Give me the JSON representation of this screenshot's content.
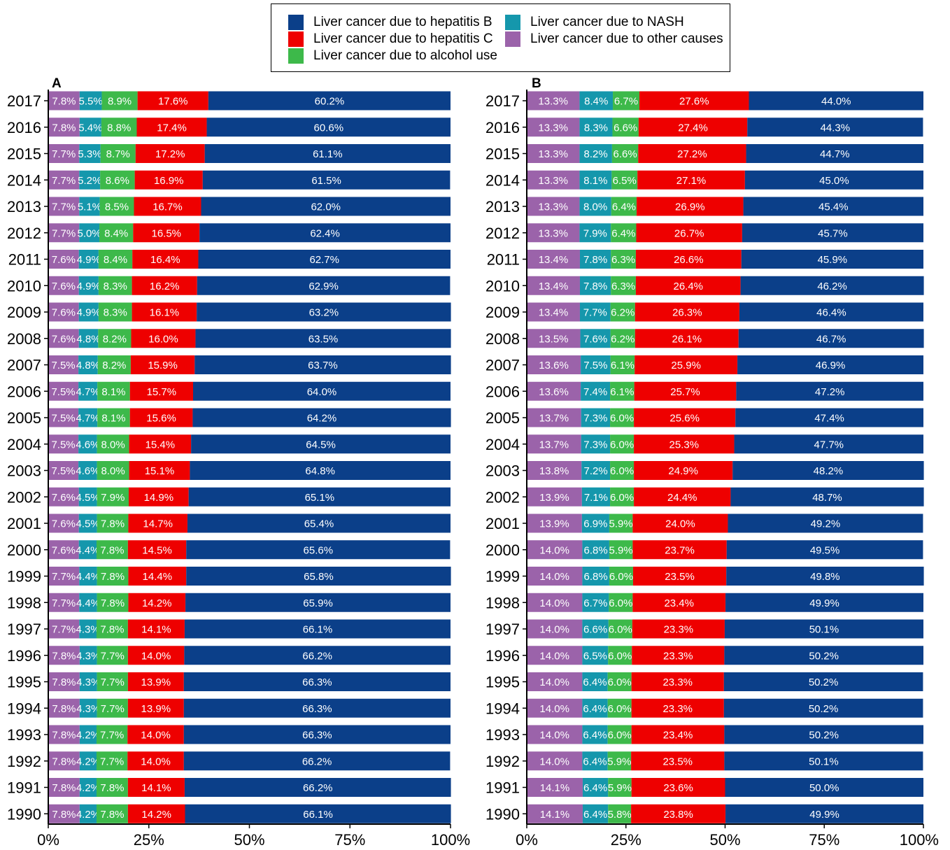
{
  "legend": {
    "items": [
      {
        "label": "Liver cancer due to hepatitis B",
        "color": "#0b3f89"
      },
      {
        "label": "Liver cancer due to NASH",
        "color": "#1597ac"
      },
      {
        "label": "Liver cancer due to hepatitis C",
        "color": "#ee0000"
      },
      {
        "label": "Liver cancer due to other causes",
        "color": "#9b63aa"
      },
      {
        "label": "Liver cancer due to alcohol use",
        "color": "#3db94a"
      }
    ]
  },
  "chart_data": [
    {
      "type": "bar",
      "orientation": "horizontal",
      "stacked": true,
      "panel": "A",
      "xlim": [
        0,
        100
      ],
      "xticks": [
        "0%",
        "25%",
        "50%",
        "75%",
        "100%"
      ],
      "categories": [
        "2017",
        "2016",
        "2015",
        "2014",
        "2013",
        "2012",
        "2011",
        "2010",
        "2009",
        "2008",
        "2007",
        "2006",
        "2005",
        "2004",
        "2003",
        "2002",
        "2001",
        "2000",
        "1999",
        "1998",
        "1997",
        "1996",
        "1995",
        "1994",
        "1993",
        "1992",
        "1991",
        "1990"
      ],
      "series": [
        {
          "name": "Liver cancer due to other causes",
          "color": "#9b63aa",
          "values": [
            7.8,
            7.8,
            7.7,
            7.7,
            7.7,
            7.7,
            7.6,
            7.6,
            7.6,
            7.6,
            7.5,
            7.5,
            7.5,
            7.5,
            7.5,
            7.6,
            7.6,
            7.6,
            7.7,
            7.7,
            7.7,
            7.8,
            7.8,
            7.8,
            7.8,
            7.8,
            7.8,
            7.8
          ]
        },
        {
          "name": "Liver cancer due to NASH",
          "color": "#1597ac",
          "values": [
            5.5,
            5.4,
            5.3,
            5.2,
            5.1,
            5.0,
            4.9,
            4.9,
            4.9,
            4.8,
            4.8,
            4.7,
            4.7,
            4.6,
            4.6,
            4.5,
            4.5,
            4.4,
            4.4,
            4.4,
            4.3,
            4.3,
            4.3,
            4.3,
            4.2,
            4.2,
            4.2,
            4.2
          ]
        },
        {
          "name": "Liver cancer due to alcohol use",
          "color": "#3db94a",
          "values": [
            8.9,
            8.8,
            8.7,
            8.6,
            8.5,
            8.4,
            8.4,
            8.3,
            8.3,
            8.2,
            8.2,
            8.1,
            8.1,
            8.0,
            8.0,
            7.9,
            7.8,
            7.8,
            7.8,
            7.8,
            7.8,
            7.7,
            7.7,
            7.7,
            7.7,
            7.7,
            7.8,
            7.8
          ]
        },
        {
          "name": "Liver cancer due to hepatitis C",
          "color": "#ee0000",
          "values": [
            17.6,
            17.4,
            17.2,
            16.9,
            16.7,
            16.5,
            16.4,
            16.2,
            16.1,
            16.0,
            15.9,
            15.7,
            15.6,
            15.4,
            15.1,
            14.9,
            14.7,
            14.5,
            14.4,
            14.2,
            14.1,
            14.0,
            13.9,
            13.9,
            14.0,
            14.0,
            14.1,
            14.2
          ]
        },
        {
          "name": "Liver cancer due to hepatitis B",
          "color": "#0b3f89",
          "values": [
            60.2,
            60.6,
            61.1,
            61.5,
            62.0,
            62.4,
            62.7,
            62.9,
            63.2,
            63.5,
            63.7,
            64.0,
            64.2,
            64.5,
            64.8,
            65.1,
            65.4,
            65.6,
            65.8,
            65.9,
            66.1,
            66.2,
            66.3,
            66.3,
            66.3,
            66.2,
            66.2,
            66.1
          ]
        }
      ]
    },
    {
      "type": "bar",
      "orientation": "horizontal",
      "stacked": true,
      "panel": "B",
      "xlim": [
        0,
        100
      ],
      "xticks": [
        "0%",
        "25%",
        "50%",
        "75%",
        "100%"
      ],
      "categories": [
        "2017",
        "2016",
        "2015",
        "2014",
        "2013",
        "2012",
        "2011",
        "2010",
        "2009",
        "2008",
        "2007",
        "2006",
        "2005",
        "2004",
        "2003",
        "2002",
        "2001",
        "2000",
        "1999",
        "1998",
        "1997",
        "1996",
        "1995",
        "1994",
        "1993",
        "1992",
        "1991",
        "1990"
      ],
      "series": [
        {
          "name": "Liver cancer due to other causes",
          "color": "#9b63aa",
          "values": [
            13.3,
            13.3,
            13.3,
            13.3,
            13.3,
            13.3,
            13.4,
            13.4,
            13.4,
            13.5,
            13.6,
            13.6,
            13.7,
            13.7,
            13.8,
            13.9,
            13.9,
            14.0,
            14.0,
            14.0,
            14.0,
            14.0,
            14.0,
            14.0,
            14.0,
            14.0,
            14.1,
            14.1
          ]
        },
        {
          "name": "Liver cancer due to NASH",
          "color": "#1597ac",
          "values": [
            8.4,
            8.3,
            8.2,
            8.1,
            8.0,
            7.9,
            7.8,
            7.8,
            7.7,
            7.6,
            7.5,
            7.4,
            7.3,
            7.3,
            7.2,
            7.1,
            6.9,
            6.8,
            6.8,
            6.7,
            6.6,
            6.5,
            6.4,
            6.4,
            6.4,
            6.4,
            6.4,
            6.4
          ]
        },
        {
          "name": "Liver cancer due to alcohol use",
          "color": "#3db94a",
          "values": [
            6.7,
            6.6,
            6.6,
            6.5,
            6.4,
            6.4,
            6.3,
            6.3,
            6.2,
            6.2,
            6.1,
            6.1,
            6.0,
            6.0,
            6.0,
            6.0,
            5.9,
            5.9,
            6.0,
            6.0,
            6.0,
            6.0,
            6.0,
            6.0,
            6.0,
            5.9,
            5.9,
            5.8
          ]
        },
        {
          "name": "Liver cancer due to hepatitis C",
          "color": "#ee0000",
          "values": [
            27.6,
            27.4,
            27.2,
            27.1,
            26.9,
            26.7,
            26.6,
            26.4,
            26.3,
            26.1,
            25.9,
            25.7,
            25.6,
            25.3,
            24.9,
            24.4,
            24.0,
            23.7,
            23.5,
            23.4,
            23.3,
            23.3,
            23.3,
            23.3,
            23.4,
            23.5,
            23.6,
            23.8
          ]
        },
        {
          "name": "Liver cancer due to hepatitis B",
          "color": "#0b3f89",
          "values": [
            44.0,
            44.3,
            44.7,
            45.0,
            45.4,
            45.7,
            45.9,
            46.2,
            46.4,
            46.7,
            46.9,
            47.2,
            47.4,
            47.7,
            48.2,
            48.7,
            49.2,
            49.5,
            49.8,
            49.9,
            50.1,
            50.2,
            50.2,
            50.2,
            50.2,
            50.1,
            50.0,
            49.9
          ]
        }
      ]
    }
  ]
}
